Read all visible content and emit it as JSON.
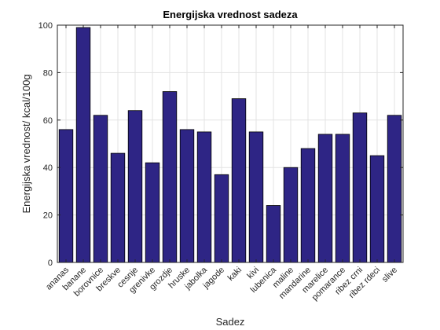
{
  "chart_data": {
    "type": "bar",
    "title": "Energijska vrednost sadeza",
    "xlabel": "Sadez",
    "ylabel": "Energijska vrednost/ kcal/100g",
    "categories": [
      "ananas",
      "banane",
      "borovnice",
      "breskve",
      "cesnje",
      "grenivke",
      "grozdje",
      "hruske",
      "jabolka",
      "jagode",
      "kaki",
      "kivi",
      "lubenica",
      "maline",
      "mandarine",
      "marelice",
      "pomarance",
      "ribez crni",
      "ribez rdeci",
      "slive"
    ],
    "values": [
      56,
      99,
      62,
      46,
      64,
      42,
      72,
      56,
      55,
      37,
      69,
      55,
      24,
      40,
      48,
      54,
      54,
      63,
      45,
      62
    ],
    "ylim": [
      0,
      100
    ],
    "yticks": [
      0,
      20,
      40,
      60,
      80,
      100
    ],
    "grid": true,
    "bar_color": "#2e2585",
    "edge_color": "#000000"
  }
}
